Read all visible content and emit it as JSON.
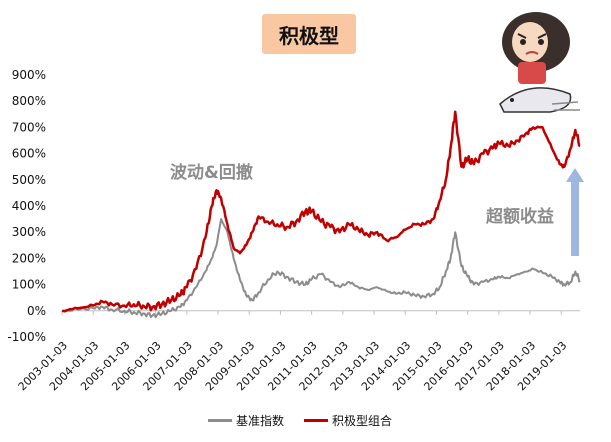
{
  "title": "积极型",
  "annotations": {
    "peak_label": "波动&回撤",
    "excess_label": "超额收益"
  },
  "colors": {
    "benchmark": "#8c8c8c",
    "portfolio": "#c00000",
    "arrow": "#9db7e0",
    "title_bg": "#f9c8a3"
  },
  "chart_data": {
    "type": "line",
    "title": "积极型",
    "xlabel": "",
    "ylabel": "",
    "ylim": [
      -100,
      900
    ],
    "y_ticks": [
      "-100%",
      "0%",
      "100%",
      "200%",
      "300%",
      "400%",
      "500%",
      "600%",
      "700%",
      "800%",
      "900%"
    ],
    "x_ticks": [
      "2003-01-03",
      "2004-01-03",
      "2005-01-03",
      "2006-01-03",
      "2007-01-03",
      "2008-01-03",
      "2009-01-03",
      "2010-01-03",
      "2011-01-03",
      "2012-01-03",
      "2013-01-03",
      "2014-01-03",
      "2015-01-03",
      "2016-01-03",
      "2017-01-03",
      "2018-01-03",
      "2019-01-03"
    ],
    "x_range": [
      2003.0,
      2019.6
    ],
    "legend_position": "bottom",
    "grid": false,
    "series": [
      {
        "name": "基准指数",
        "x": [
          2003.0,
          2003.5,
          2004.0,
          2004.3,
          2004.6,
          2005.0,
          2005.3,
          2005.6,
          2005.9,
          2006.2,
          2006.5,
          2006.8,
          2007.0,
          2007.3,
          2007.6,
          2007.8,
          2007.95,
          2008.1,
          2008.3,
          2008.5,
          2008.7,
          2008.9,
          2009.1,
          2009.3,
          2009.6,
          2009.9,
          2010.2,
          2010.5,
          2010.8,
          2011.0,
          2011.3,
          2011.6,
          2011.9,
          2012.2,
          2012.5,
          2012.8,
          2013.1,
          2013.4,
          2013.7,
          2014.0,
          2014.3,
          2014.6,
          2014.9,
          2015.1,
          2015.3,
          2015.45,
          2015.6,
          2015.8,
          2016.0,
          2016.2,
          2016.5,
          2016.8,
          2017.0,
          2017.3,
          2017.6,
          2017.9,
          2018.1,
          2018.4,
          2018.7,
          2018.95,
          2019.1,
          2019.3,
          2019.45,
          2019.6
        ],
        "values": [
          0,
          5,
          10,
          15,
          5,
          0,
          -5,
          -10,
          -18,
          -12,
          0,
          15,
          40,
          90,
          150,
          200,
          250,
          350,
          300,
          200,
          120,
          60,
          40,
          70,
          120,
          150,
          130,
          110,
          100,
          120,
          140,
          110,
          90,
          110,
          90,
          80,
          90,
          75,
          65,
          70,
          60,
          55,
          65,
          90,
          150,
          200,
          300,
          170,
          130,
          100,
          110,
          120,
          130,
          125,
          140,
          150,
          160,
          145,
          130,
          110,
          100,
          110,
          150,
          115
        ]
      },
      {
        "name": "积极型组合",
        "x": [
          2003.0,
          2003.5,
          2004.0,
          2004.3,
          2004.6,
          2005.0,
          2005.3,
          2005.6,
          2005.9,
          2006.2,
          2006.5,
          2006.8,
          2007.0,
          2007.3,
          2007.6,
          2007.8,
          2007.95,
          2008.1,
          2008.3,
          2008.5,
          2008.7,
          2008.9,
          2009.1,
          2009.3,
          2009.6,
          2009.9,
          2010.2,
          2010.5,
          2010.8,
          2011.0,
          2011.3,
          2011.6,
          2011.9,
          2012.2,
          2012.5,
          2012.8,
          2013.1,
          2013.4,
          2013.7,
          2014.0,
          2014.3,
          2014.6,
          2014.9,
          2015.1,
          2015.3,
          2015.45,
          2015.6,
          2015.8,
          2016.0,
          2016.2,
          2016.5,
          2016.8,
          2017.0,
          2017.3,
          2017.6,
          2017.9,
          2018.1,
          2018.4,
          2018.7,
          2018.95,
          2019.1,
          2019.3,
          2019.45,
          2019.6
        ],
        "values": [
          0,
          10,
          20,
          35,
          25,
          20,
          25,
          20,
          15,
          25,
          40,
          60,
          90,
          160,
          280,
          400,
          460,
          430,
          330,
          240,
          220,
          250,
          300,
          360,
          340,
          330,
          320,
          340,
          380,
          380,
          340,
          320,
          300,
          330,
          310,
          290,
          300,
          270,
          280,
          310,
          330,
          330,
          350,
          420,
          500,
          620,
          760,
          550,
          580,
          560,
          600,
          620,
          640,
          630,
          650,
          680,
          700,
          700,
          620,
          560,
          550,
          620,
          690,
          630
        ]
      }
    ]
  },
  "legend": {
    "items": [
      "基准指数",
      "积极型组合"
    ]
  }
}
